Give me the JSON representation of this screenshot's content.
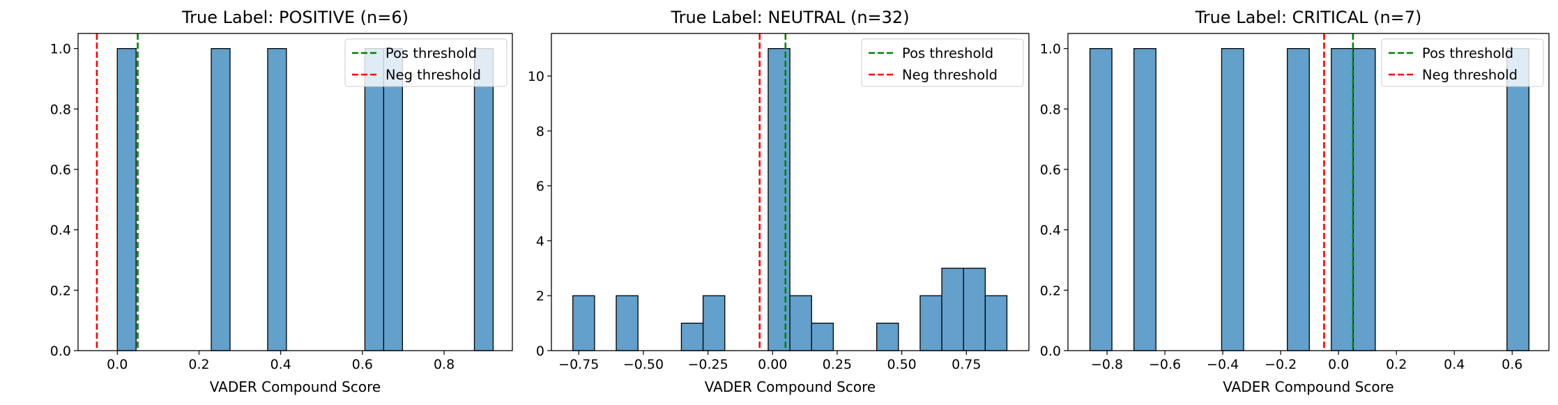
{
  "chart_data": [
    {
      "type": "bar",
      "title": "True Label: POSITIVE (n=6)",
      "xlabel": "VADER Compound Score",
      "ylabel": "",
      "xlim": [
        -0.096,
        0.967
      ],
      "ylim": [
        0,
        1.05
      ],
      "xticks": [
        0.0,
        0.2,
        0.4,
        0.6,
        0.8
      ],
      "xtick_labels": [
        "0.0",
        "0.2",
        "0.4",
        "0.6",
        "0.8"
      ],
      "yticks": [
        0,
        0.2,
        0.4,
        0.6,
        0.8,
        1.0
      ],
      "ytick_labels": [
        "0.0",
        "0.2",
        "0.4",
        "0.6",
        "0.8",
        "1.0"
      ],
      "bins": [
        {
          "x0": 0.0,
          "x1": 0.046,
          "count": 1
        },
        {
          "x0": 0.23,
          "x1": 0.276,
          "count": 1
        },
        {
          "x0": 0.368,
          "x1": 0.414,
          "count": 1
        },
        {
          "x0": 0.606,
          "x1": 0.652,
          "count": 1
        },
        {
          "x0": 0.652,
          "x1": 0.698,
          "count": 1
        },
        {
          "x0": 0.874,
          "x1": 0.92,
          "count": 1
        }
      ],
      "thresholds": [
        {
          "name": "Pos threshold",
          "value": 0.05,
          "color": "#008000"
        },
        {
          "name": "Neg threshold",
          "value": -0.05,
          "color": "#ff0000"
        }
      ],
      "legend_position": "top-right",
      "bar_color": "#5b9bc8"
    },
    {
      "type": "bar",
      "title": "True Label: NEUTRAL (n=32)",
      "xlabel": "VADER Compound Score",
      "ylabel": "",
      "xlim": [
        -0.856,
        0.992
      ],
      "ylim": [
        0,
        11.55
      ],
      "xticks": [
        -0.75,
        -0.5,
        -0.25,
        0.0,
        0.25,
        0.5,
        0.75
      ],
      "xtick_labels": [
        "−0.75",
        "−0.50",
        "−0.25",
        "0.00",
        "0.25",
        "0.50",
        "0.75"
      ],
      "yticks": [
        0,
        2,
        4,
        6,
        8,
        10
      ],
      "ytick_labels": [
        "0",
        "2",
        "4",
        "6",
        "8",
        "10"
      ],
      "bins": [
        {
          "x0": -0.773,
          "x1": -0.689,
          "count": 2
        },
        {
          "x0": -0.605,
          "x1": -0.521,
          "count": 2
        },
        {
          "x0": -0.353,
          "x1": -0.269,
          "count": 1
        },
        {
          "x0": -0.269,
          "x1": -0.185,
          "count": 2
        },
        {
          "x0": -0.017,
          "x1": 0.067,
          "count": 11
        },
        {
          "x0": 0.067,
          "x1": 0.151,
          "count": 2
        },
        {
          "x0": 0.151,
          "x1": 0.235,
          "count": 1
        },
        {
          "x0": 0.403,
          "x1": 0.487,
          "count": 1
        },
        {
          "x0": 0.571,
          "x1": 0.655,
          "count": 2
        },
        {
          "x0": 0.655,
          "x1": 0.739,
          "count": 3
        },
        {
          "x0": 0.739,
          "x1": 0.823,
          "count": 3
        },
        {
          "x0": 0.823,
          "x1": 0.907,
          "count": 2
        }
      ],
      "thresholds": [
        {
          "name": "Pos threshold",
          "value": 0.05,
          "color": "#008000"
        },
        {
          "name": "Neg threshold",
          "value": -0.05,
          "color": "#ff0000"
        }
      ],
      "legend_position": "top-right",
      "bar_color": "#5b9bc8"
    },
    {
      "type": "bar",
      "title": "True Label: CRITICAL (n=7)",
      "xlabel": "VADER Compound Score",
      "ylabel": "",
      "xlim": [
        -0.935,
        0.727
      ],
      "ylim": [
        0,
        1.05
      ],
      "xticks": [
        -0.8,
        -0.6,
        -0.4,
        -0.2,
        0.0,
        0.2,
        0.4,
        0.6
      ],
      "xtick_labels": [
        "−0.8",
        "−0.6",
        "−0.4",
        "−0.2",
        "0.0",
        "0.2",
        "0.4",
        "0.6"
      ],
      "yticks": [
        0,
        0.2,
        0.4,
        0.6,
        0.8,
        1.0
      ],
      "ytick_labels": [
        "0.0",
        "0.2",
        "0.4",
        "0.6",
        "0.8",
        "1.0"
      ],
      "bins": [
        {
          "x0": -0.859,
          "x1": -0.783,
          "count": 1
        },
        {
          "x0": -0.707,
          "x1": -0.631,
          "count": 1
        },
        {
          "x0": -0.404,
          "x1": -0.328,
          "count": 1
        },
        {
          "x0": -0.177,
          "x1": -0.101,
          "count": 1
        },
        {
          "x0": -0.025,
          "x1": 0.051,
          "count": 1
        },
        {
          "x0": 0.051,
          "x1": 0.127,
          "count": 1
        },
        {
          "x0": 0.582,
          "x1": 0.658,
          "count": 1
        }
      ],
      "thresholds": [
        {
          "name": "Pos threshold",
          "value": 0.05,
          "color": "#008000"
        },
        {
          "name": "Neg threshold",
          "value": -0.05,
          "color": "#ff0000"
        }
      ],
      "legend_position": "top-right",
      "bar_color": "#5b9bc8"
    }
  ]
}
